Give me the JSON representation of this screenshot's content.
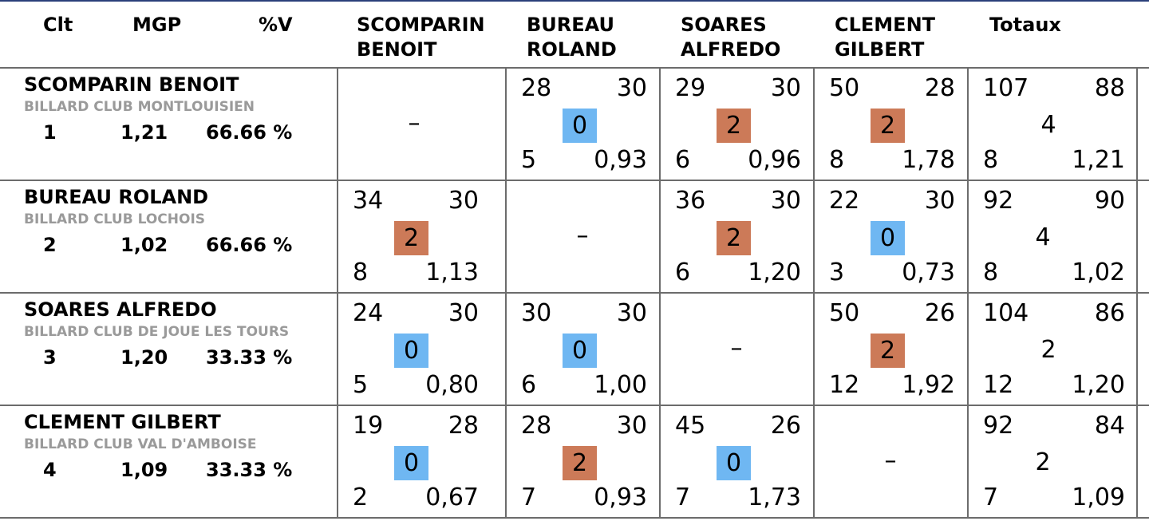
{
  "colors": {
    "win": "#cc7a58",
    "loss": "#6fb7f2",
    "grid": "#6c6c6c",
    "club": "#9a9a9a"
  },
  "header": {
    "clt": "Clt",
    "mgp": "MGP",
    "pv": "%V",
    "p1a": "SCOMPARIN",
    "p1b": "BENOIT",
    "p2a": "BUREAU",
    "p2b": "ROLAND",
    "p3a": "SOARES",
    "p3b": "ALFREDO",
    "p4a": "CLEMENT",
    "p4b": "GILBERT",
    "totaux": "Totaux"
  },
  "players": [
    {
      "name": "SCOMPARIN BENOIT",
      "club": "BILLARD CLUB MONTLOUISIEN",
      "clt": "1",
      "mgp": "1,21",
      "pv": "66.66 %"
    },
    {
      "name": "BUREAU ROLAND",
      "club": "BILLARD CLUB LOCHOIS",
      "clt": "2",
      "mgp": "1,02",
      "pv": "66.66 %"
    },
    {
      "name": "SOARES ALFREDO",
      "club": "BILLARD CLUB DE JOUE LES TOURS",
      "clt": "3",
      "mgp": "1,20",
      "pv": "33.33 %"
    },
    {
      "name": "CLEMENT GILBERT",
      "club": "BILLARD CLUB VAL D'AMBOISE",
      "clt": "4",
      "mgp": "1,09",
      "pv": "33.33 %"
    }
  ],
  "dash": "–",
  "matches": [
    [
      null,
      {
        "pts": "28",
        "dist": "30",
        "result": "0",
        "reprises": "5",
        "moy": "0,93"
      },
      {
        "pts": "29",
        "dist": "30",
        "result": "2",
        "reprises": "6",
        "moy": "0,96"
      },
      {
        "pts": "50",
        "dist": "28",
        "result": "2",
        "reprises": "8",
        "moy": "1,78"
      }
    ],
    [
      {
        "pts": "34",
        "dist": "30",
        "result": "2",
        "reprises": "8",
        "moy": "1,13"
      },
      null,
      {
        "pts": "36",
        "dist": "30",
        "result": "2",
        "reprises": "6",
        "moy": "1,20"
      },
      {
        "pts": "22",
        "dist": "30",
        "result": "0",
        "reprises": "3",
        "moy": "0,73"
      }
    ],
    [
      {
        "pts": "24",
        "dist": "30",
        "result": "0",
        "reprises": "5",
        "moy": "0,80"
      },
      {
        "pts": "30",
        "dist": "30",
        "result": "0",
        "reprises": "6",
        "moy": "1,00"
      },
      null,
      {
        "pts": "50",
        "dist": "26",
        "result": "2",
        "reprises": "12",
        "moy": "1,92"
      }
    ],
    [
      {
        "pts": "19",
        "dist": "28",
        "result": "0",
        "reprises": "2",
        "moy": "0,67"
      },
      {
        "pts": "28",
        "dist": "30",
        "result": "2",
        "reprises": "7",
        "moy": "0,93"
      },
      {
        "pts": "45",
        "dist": "26",
        "result": "0",
        "reprises": "7",
        "moy": "1,73"
      },
      null
    ]
  ],
  "totals": [
    {
      "pts": "107",
      "dist": "88",
      "result": "4",
      "reprises": "8",
      "moy": "1,21"
    },
    {
      "pts": "92",
      "dist": "90",
      "result": "4",
      "reprises": "8",
      "moy": "1,02"
    },
    {
      "pts": "104",
      "dist": "86",
      "result": "2",
      "reprises": "12",
      "moy": "1,20"
    },
    {
      "pts": "92",
      "dist": "84",
      "result": "2",
      "reprises": "7",
      "moy": "1,09"
    }
  ]
}
